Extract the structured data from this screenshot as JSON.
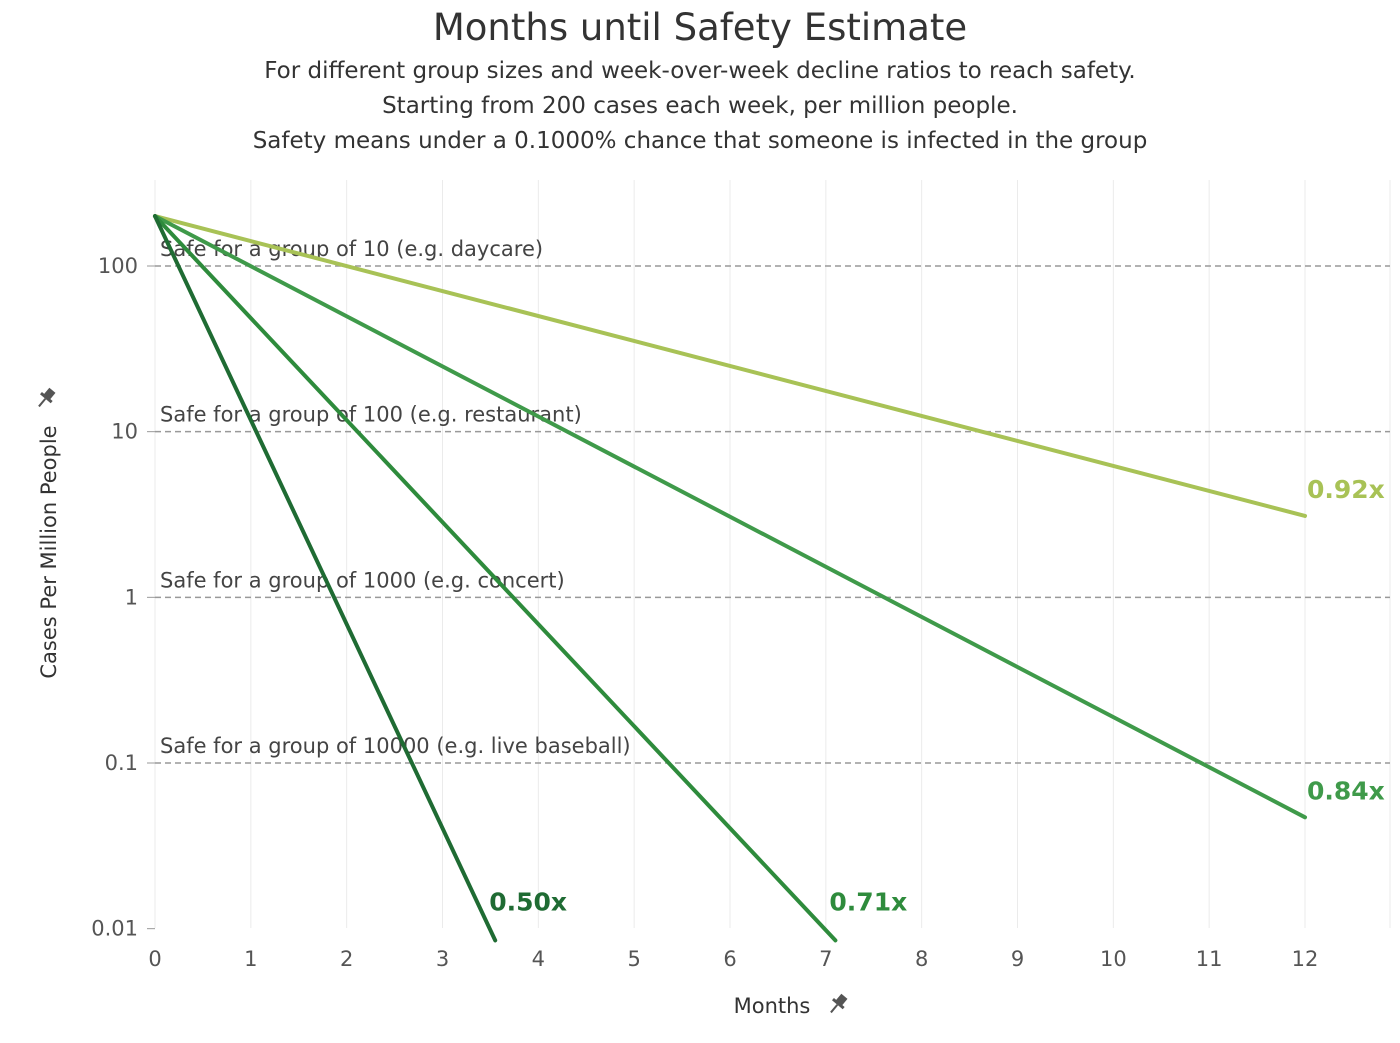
{
  "chart_data": {
    "type": "line",
    "title": "Months until Safety Estimate",
    "subtitles": [
      "For different group sizes and week-over-week decline ratios to reach safety.",
      "Starting from 200 cases each week, per million people.",
      "Safety means under a 0.1000% chance that someone is infected in the group"
    ],
    "xlabel": "Months",
    "ylabel": "Cases Per Million People",
    "y_scale": "log",
    "xlim": [
      0,
      12.9
    ],
    "ylim": [
      0.008,
      260
    ],
    "x_ticks": [
      0,
      1,
      2,
      3,
      4,
      5,
      6,
      7,
      8,
      9,
      10,
      11,
      12
    ],
    "y_ticks": [
      {
        "value": 100,
        "label": "100"
      },
      {
        "value": 10,
        "label": "10"
      },
      {
        "value": 1,
        "label": "1"
      },
      {
        "value": 0.1,
        "label": "0.1"
      },
      {
        "value": 0.01,
        "label": "0.01"
      }
    ],
    "grid": "vertical",
    "reference_lines": [
      {
        "y": 100,
        "label": "Safe for a group of 10 (e.g. daycare)"
      },
      {
        "y": 10,
        "label": "Safe for a group of 100 (e.g. restaurant)"
      },
      {
        "y": 1,
        "label": "Safe for a group of 1000 (e.g. concert)"
      },
      {
        "y": 0.1,
        "label": "Safe for a group of 10000 (e.g. live baseball)"
      }
    ],
    "series": [
      {
        "name": "0.92x",
        "color": "#a8c256",
        "points": [
          [
            0,
            200
          ],
          [
            12,
            3.1
          ]
        ]
      },
      {
        "name": "0.84x",
        "color": "#3f9a4a",
        "points": [
          [
            0,
            200
          ],
          [
            12,
            0.047
          ]
        ]
      },
      {
        "name": "0.71x",
        "color": "#2e8b3c",
        "points": [
          [
            0,
            200
          ],
          [
            7.1,
            0.0085
          ]
        ]
      },
      {
        "name": "0.50x",
        "color": "#1f6b33",
        "points": [
          [
            0,
            200
          ],
          [
            3.55,
            0.0085
          ]
        ]
      }
    ]
  },
  "icons": {
    "y_axis_pin": "pin-icon",
    "x_axis_pin": "pin-icon"
  }
}
